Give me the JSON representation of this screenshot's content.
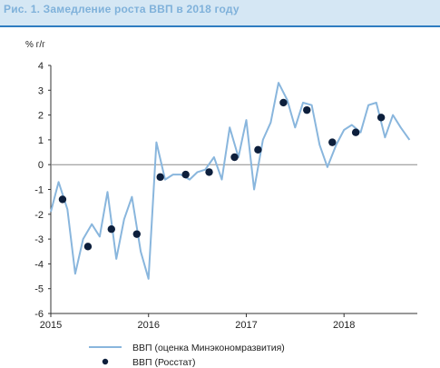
{
  "title": "Рис. 1. Замедление роста ВВП в 2018 году",
  "colors": {
    "band": "#d5e7f4",
    "divider": "#2f7dc1",
    "line": "#89b6dd",
    "points": "#0d1f3c",
    "axis": "#333333",
    "zero_line": "#8a8a8a"
  },
  "chart_data": {
    "type": "line",
    "ylabel": "% г/г",
    "ylim": [
      -6,
      4
    ],
    "yticks": [
      4,
      3,
      2,
      1,
      0,
      -1,
      -2,
      -3,
      -4,
      -5,
      -6
    ],
    "xlim": [
      2015,
      2018.75
    ],
    "xticks": [
      "2015",
      "2016",
      "2017",
      "2018"
    ],
    "grid": false,
    "legend_position": "bottom",
    "series": [
      {
        "name": "ВВП (оценка Минэкономразвития)",
        "style": "line",
        "x": [
          2015.0,
          2015.08,
          2015.17,
          2015.25,
          2015.33,
          2015.42,
          2015.5,
          2015.58,
          2015.67,
          2015.75,
          2015.83,
          2015.92,
          2016.0,
          2016.08,
          2016.17,
          2016.25,
          2016.33,
          2016.42,
          2016.5,
          2016.58,
          2016.67,
          2016.75,
          2016.83,
          2016.92,
          2017.0,
          2017.08,
          2017.17,
          2017.25,
          2017.33,
          2017.42,
          2017.5,
          2017.58,
          2017.67,
          2017.75,
          2017.83,
          2017.92,
          2018.0,
          2018.08,
          2018.17,
          2018.25,
          2018.33,
          2018.42,
          2018.5,
          2018.58,
          2018.67
        ],
        "values": [
          -1.9,
          -0.7,
          -1.8,
          -4.4,
          -3.0,
          -2.4,
          -2.9,
          -1.1,
          -3.8,
          -2.2,
          -1.3,
          -3.5,
          -4.6,
          0.9,
          -0.6,
          -0.4,
          -0.4,
          -0.6,
          -0.3,
          -0.2,
          0.3,
          -0.6,
          1.5,
          0.3,
          1.8,
          -1.0,
          1.0,
          1.7,
          3.3,
          2.6,
          1.5,
          2.5,
          2.4,
          0.8,
          -0.1,
          0.8,
          1.4,
          1.6,
          1.3,
          2.4,
          2.5,
          1.1,
          2.0,
          1.5,
          1.0
        ]
      },
      {
        "name": "ВВП (Росстат)",
        "style": "markers",
        "x": [
          2015.12,
          2015.38,
          2015.62,
          2015.88,
          2016.12,
          2016.38,
          2016.62,
          2016.88,
          2017.12,
          2017.38,
          2017.62,
          2017.88,
          2018.12,
          2018.38
        ],
        "values": [
          -1.4,
          -3.3,
          -2.6,
          -2.8,
          -0.5,
          -0.4,
          -0.3,
          0.3,
          0.6,
          2.5,
          2.2,
          0.9,
          1.3,
          1.9
        ]
      }
    ]
  }
}
